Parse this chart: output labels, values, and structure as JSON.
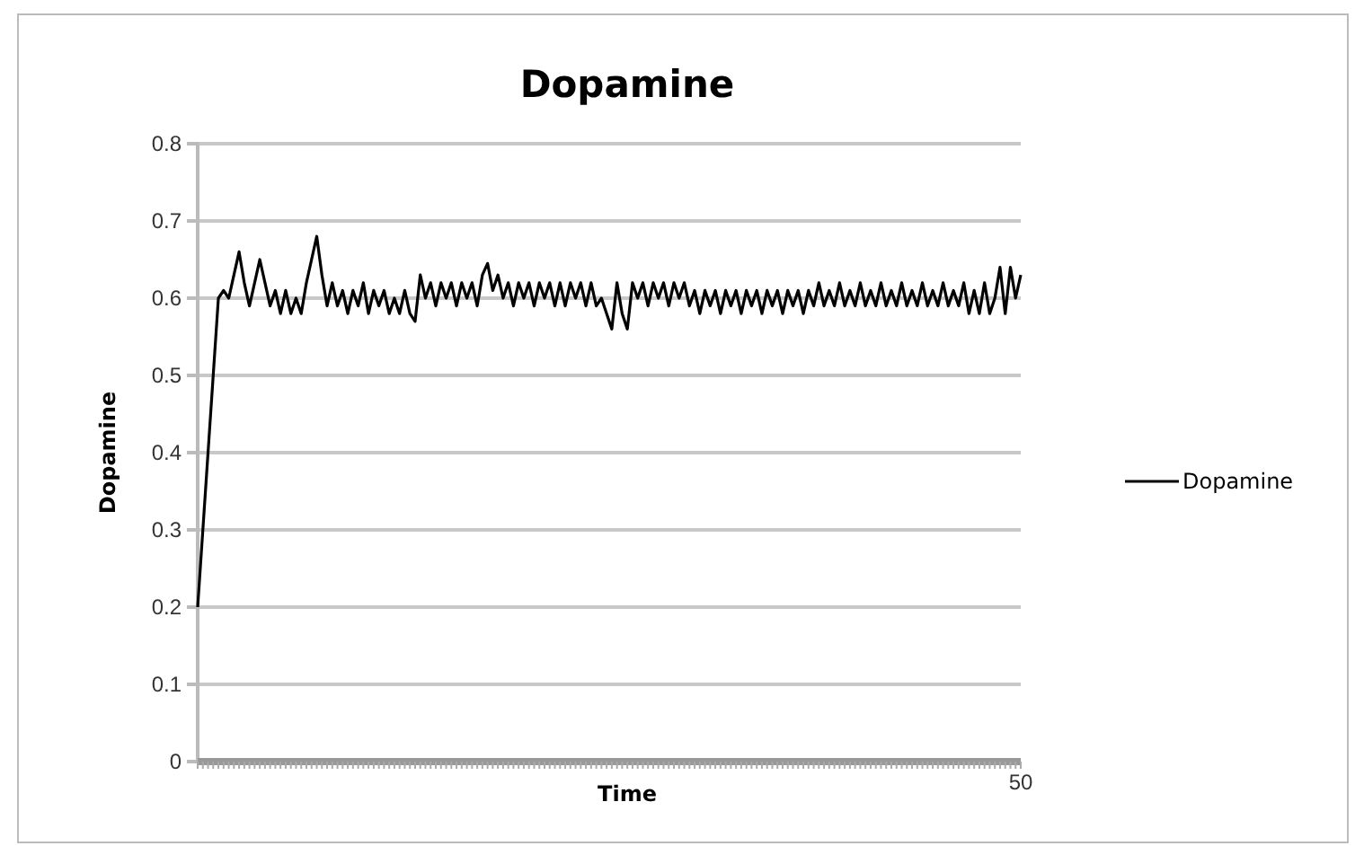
{
  "chart_data": {
    "type": "line",
    "title": "Dopamine",
    "xlabel": "Time",
    "ylabel": "Dopamine",
    "ylim": [
      0,
      0.8
    ],
    "yticks": [
      0,
      0.1,
      0.2,
      0.3,
      0.4,
      0.5,
      0.6,
      0.7,
      0.8
    ],
    "grid": "y",
    "legend": "right",
    "marker": "none",
    "line_style": "solid",
    "categories": [
      null,
      null,
      null,
      null,
      null,
      null,
      null,
      null,
      null,
      null,
      null,
      null,
      null,
      null,
      null,
      null,
      null,
      null,
      null,
      null,
      null,
      null,
      null,
      null,
      null,
      null,
      null,
      null,
      null,
      null,
      null,
      null,
      null,
      null,
      null,
      null,
      null,
      null,
      null,
      null,
      null,
      null,
      null,
      null,
      null,
      null,
      null,
      null,
      null,
      null,
      null,
      null,
      null,
      null,
      null,
      null,
      null,
      null,
      null,
      null,
      null,
      null,
      null,
      null,
      null,
      null,
      null,
      null,
      null,
      null,
      null,
      null,
      null,
      null,
      null,
      null,
      null,
      null,
      null,
      null,
      null,
      null,
      null,
      null,
      null,
      null,
      null,
      null,
      null,
      null,
      null,
      null,
      null,
      null,
      null,
      null,
      null,
      null,
      null,
      null,
      null,
      null,
      null,
      null,
      null,
      null,
      null,
      null,
      null,
      null,
      null,
      null,
      null,
      null,
      null,
      null,
      null,
      null,
      null,
      null,
      null,
      null,
      null,
      null,
      null,
      null,
      null,
      null,
      null,
      null,
      null,
      null,
      null,
      null,
      null,
      null,
      null,
      null,
      null,
      null,
      null,
      null,
      null,
      null,
      null,
      null,
      null,
      null,
      null,
      null,
      null,
      null,
      null,
      null,
      null,
      null,
      null,
      null,
      null,
      "50"
    ],
    "series": [
      {
        "name": "Dopamine",
        "color": "#000000",
        "values": [
          0.2,
          0.3,
          0.4,
          0.5,
          0.6,
          0.61,
          0.6,
          0.63,
          0.66,
          0.62,
          0.59,
          0.62,
          0.65,
          0.62,
          0.59,
          0.61,
          0.58,
          0.61,
          0.58,
          0.6,
          0.58,
          0.62,
          0.65,
          0.68,
          0.63,
          0.59,
          0.62,
          0.59,
          0.61,
          0.58,
          0.61,
          0.59,
          0.62,
          0.58,
          0.61,
          0.59,
          0.61,
          0.58,
          0.6,
          0.58,
          0.61,
          0.58,
          0.57,
          0.63,
          0.6,
          0.62,
          0.59,
          0.62,
          0.6,
          0.62,
          0.59,
          0.62,
          0.6,
          0.62,
          0.59,
          0.63,
          0.645,
          0.61,
          0.63,
          0.6,
          0.62,
          0.59,
          0.62,
          0.6,
          0.62,
          0.59,
          0.62,
          0.6,
          0.62,
          0.59,
          0.62,
          0.59,
          0.62,
          0.6,
          0.62,
          0.59,
          0.62,
          0.59,
          0.6,
          0.58,
          0.56,
          0.62,
          0.58,
          0.56,
          0.62,
          0.6,
          0.62,
          0.59,
          0.62,
          0.6,
          0.62,
          0.59,
          0.62,
          0.6,
          0.62,
          0.59,
          0.61,
          0.58,
          0.61,
          0.59,
          0.61,
          0.58,
          0.61,
          0.59,
          0.61,
          0.58,
          0.61,
          0.59,
          0.61,
          0.58,
          0.61,
          0.59,
          0.61,
          0.58,
          0.61,
          0.59,
          0.61,
          0.58,
          0.61,
          0.59,
          0.62,
          0.59,
          0.61,
          0.59,
          0.62,
          0.59,
          0.61,
          0.59,
          0.62,
          0.59,
          0.61,
          0.59,
          0.62,
          0.59,
          0.61,
          0.59,
          0.62,
          0.59,
          0.61,
          0.59,
          0.62,
          0.59,
          0.61,
          0.59,
          0.62,
          0.59,
          0.61,
          0.59,
          0.62,
          0.58,
          0.61,
          0.58,
          0.62,
          0.58,
          0.6,
          0.64,
          0.58,
          0.64,
          0.6,
          0.63
        ]
      }
    ]
  }
}
